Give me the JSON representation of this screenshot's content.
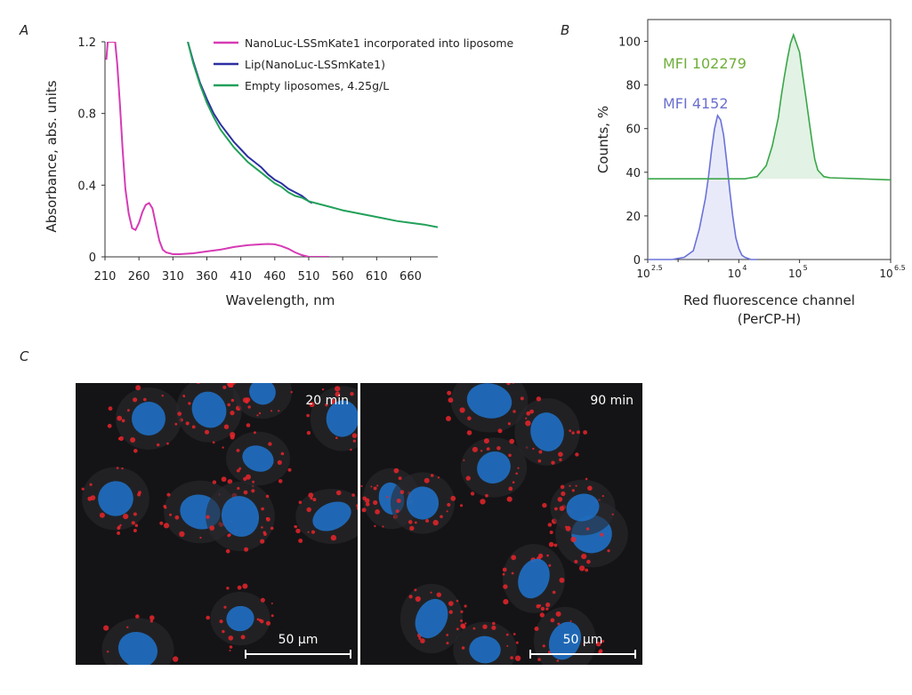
{
  "panels": {
    "a": "A",
    "b": "B",
    "c": "C"
  },
  "colors": {
    "nanoluc": "#d63bb5",
    "lip": "#2b2fa0",
    "empty": "#22a05a",
    "green_hist": "#3aa64a",
    "blue_hist": "#6a72d8",
    "mfi_green": "#6fae3a",
    "mfi_blue": "#6a6fd0",
    "nucleus": "#1f6fc4",
    "puncta": "#e8242a"
  },
  "chart_data": [
    {
      "type": "line",
      "xlabel": "Wavelength, nm",
      "ylabel": "Absorbance, abs. units",
      "xlim": [
        210,
        700
      ],
      "ylim": [
        0,
        1.2
      ],
      "xticks": [
        210,
        260,
        310,
        360,
        410,
        460,
        510,
        560,
        610,
        660
      ],
      "yticks": [
        0,
        0.4,
        0.8,
        1.2
      ],
      "ytick_labels": [
        "0",
        "0.4",
        "0.8",
        "1.2"
      ],
      "legend_placement": "top-right",
      "series": [
        {
          "name": "NanoLuc-LSSmKate1 incorporated into liposome",
          "color": "#d63bb5",
          "x": [
            212,
            214,
            220,
            225,
            228,
            232,
            236,
            240,
            245,
            250,
            255,
            260,
            265,
            270,
            275,
            280,
            285,
            290,
            295,
            300,
            310,
            320,
            340,
            360,
            380,
            400,
            420,
            440,
            450,
            460,
            470,
            480,
            490,
            500,
            510,
            520,
            540
          ],
          "y": [
            1.1,
            1.2,
            1.2,
            1.2,
            1.08,
            0.85,
            0.6,
            0.38,
            0.24,
            0.16,
            0.15,
            0.19,
            0.25,
            0.29,
            0.3,
            0.27,
            0.18,
            0.09,
            0.04,
            0.025,
            0.015,
            0.015,
            0.02,
            0.03,
            0.04,
            0.055,
            0.065,
            0.07,
            0.072,
            0.07,
            0.06,
            0.045,
            0.025,
            0.01,
            0.0,
            0.0,
            0.0
          ]
        },
        {
          "name": "Lip(NanoLuc-LSSmKate1)",
          "color": "#2b2fa0",
          "x": [
            332,
            340,
            350,
            360,
            370,
            380,
            390,
            400,
            410,
            420,
            430,
            440,
            450,
            460,
            470,
            480,
            490,
            500,
            510,
            515
          ],
          "y": [
            1.2,
            1.09,
            0.97,
            0.88,
            0.8,
            0.74,
            0.69,
            0.64,
            0.6,
            0.56,
            0.53,
            0.5,
            0.46,
            0.43,
            0.41,
            0.38,
            0.36,
            0.34,
            0.31,
            0.3
          ]
        },
        {
          "name": "Empty liposomes, 4.25g/L",
          "color": "#22a05a",
          "x": [
            332,
            340,
            350,
            360,
            370,
            380,
            390,
            400,
            410,
            420,
            430,
            440,
            450,
            460,
            470,
            480,
            490,
            500,
            510,
            520,
            540,
            560,
            580,
            600,
            620,
            640,
            660,
            680,
            700
          ],
          "y": [
            1.2,
            1.08,
            0.96,
            0.86,
            0.78,
            0.71,
            0.66,
            0.61,
            0.57,
            0.53,
            0.5,
            0.47,
            0.44,
            0.41,
            0.39,
            0.36,
            0.34,
            0.33,
            0.31,
            0.3,
            0.28,
            0.26,
            0.245,
            0.23,
            0.215,
            0.2,
            0.19,
            0.18,
            0.165
          ]
        }
      ]
    },
    {
      "type": "area",
      "xlabel_line1": "Red fluorescence channel",
      "xlabel_line2": "(PerCP-H)",
      "ylabel": "Counts, %",
      "x_scale": "log10",
      "xlim_log10": [
        2.5,
        6.5
      ],
      "ylim": [
        0,
        110
      ],
      "xtick_log10": [
        2.5,
        4,
        5,
        6.5
      ],
      "xtick_exponents": [
        "2.5",
        "4",
        "5",
        "6.5"
      ],
      "yticks": [
        0,
        20,
        40,
        60,
        80,
        100
      ],
      "annotations": [
        {
          "text": "MFI 102279",
          "color": "#6fae3a"
        },
        {
          "text": "MFI 4152",
          "color": "#6a6fd0"
        }
      ],
      "series": [
        {
          "color": "#6a72d8",
          "x_log10": [
            2.5,
            2.9,
            3.1,
            3.25,
            3.35,
            3.45,
            3.5,
            3.55,
            3.6,
            3.65,
            3.7,
            3.75,
            3.8,
            3.85,
            3.9,
            3.95,
            4.0,
            4.05,
            4.1,
            4.2,
            4.3
          ],
          "y": [
            0,
            0,
            1,
            4,
            14,
            28,
            38,
            50,
            60,
            66,
            64,
            57,
            45,
            32,
            20,
            10,
            5,
            2,
            1,
            0,
            0
          ]
        },
        {
          "color": "#3aa64a",
          "baseline": 37,
          "x_log10": [
            2.5,
            3.8,
            4.1,
            4.3,
            4.45,
            4.55,
            4.65,
            4.7,
            4.75,
            4.8,
            4.85,
            4.9,
            4.95,
            5.0,
            5.05,
            5.1,
            5.15,
            5.2,
            5.25,
            5.3,
            5.4,
            5.5,
            6.0,
            6.5
          ],
          "y": [
            37,
            37,
            37,
            38,
            43,
            52,
            65,
            75,
            84,
            92,
            99,
            103,
            99,
            95,
            85,
            75,
            65,
            55,
            46,
            41,
            38,
            37.5,
            37,
            36.5
          ]
        }
      ]
    }
  ],
  "micrographs": [
    {
      "time": "20 min",
      "scale": "50 µm"
    },
    {
      "time": "90 min",
      "scale": "50 µm"
    }
  ]
}
